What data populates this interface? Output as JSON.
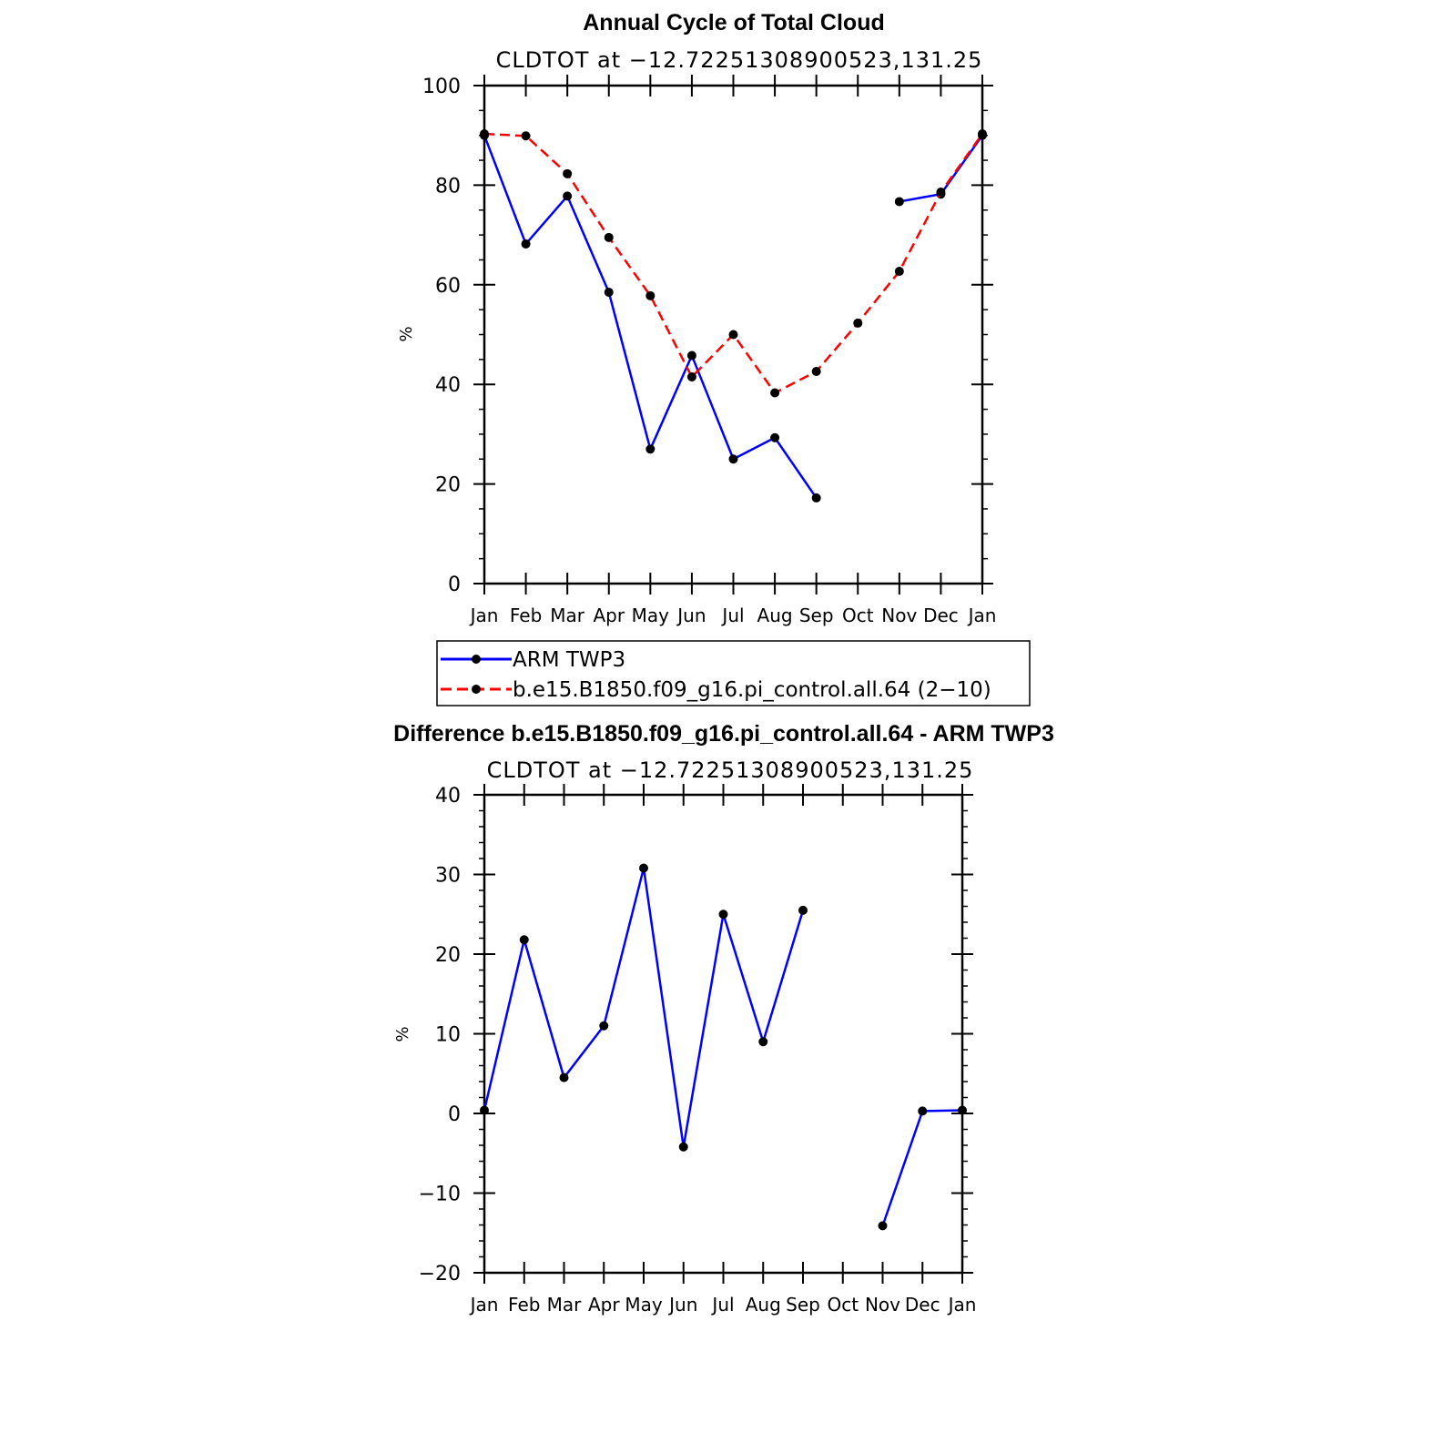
{
  "chart_data": [
    {
      "type": "line",
      "title": "Annual Cycle of Total Cloud",
      "subtitle": "CLDTOT at −12.72251308900523,131.25",
      "ylabel": "%",
      "ylim": [
        0,
        100
      ],
      "yticks": [
        0,
        20,
        40,
        60,
        80,
        100
      ],
      "yticks_labels": [
        "0",
        "20",
        "40",
        "60",
        "80",
        "100"
      ],
      "categories": [
        "Jan",
        "Feb",
        "Mar",
        "Apr",
        "May",
        "Jun",
        "Jul",
        "Aug",
        "Sep",
        "Oct",
        "Nov",
        "Dec",
        "Jan"
      ],
      "series": [
        {
          "name": "ARM TWP3",
          "color": "#0000ff",
          "dash": "solid",
          "values": [
            90,
            68.2,
            77.8,
            58.5,
            27,
            45.8,
            25,
            29.3,
            17.2,
            null,
            76.7,
            78.2,
            90
          ]
        },
        {
          "name": "b.e15.B1850.f09_g16.pi_control.all.64 (2−10)",
          "color": "#ff0000",
          "dash": "dashed",
          "values": [
            90.3,
            89.9,
            82.3,
            69.5,
            57.8,
            41.5,
            50,
            38.3,
            42.6,
            52.3,
            62.7,
            78.6,
            90.3
          ]
        }
      ],
      "legend": "below"
    },
    {
      "type": "line",
      "title": "Difference b.e15.B1850.f09_g16.pi_control.all.64 - ARM TWP3",
      "subtitle": "CLDTOT at −12.72251308900523,131.25",
      "ylabel": "%",
      "ylim": [
        -20,
        40
      ],
      "yticks": [
        -20,
        -10,
        0,
        10,
        20,
        30,
        40
      ],
      "yticks_labels": [
        "−20",
        "−10",
        "0",
        "10",
        "20",
        "30",
        "40"
      ],
      "categories": [
        "Jan",
        "Feb",
        "Mar",
        "Apr",
        "May",
        "Jun",
        "Jul",
        "Aug",
        "Sep",
        "Oct",
        "Nov",
        "Dec",
        "Jan"
      ],
      "series": [
        {
          "name": "Difference",
          "color": "#0000ff",
          "dash": "solid",
          "values": [
            0.4,
            21.8,
            4.5,
            11,
            30.8,
            -4.2,
            25,
            9,
            25.5,
            null,
            -14.1,
            0.3,
            0.4
          ]
        }
      ]
    }
  ]
}
